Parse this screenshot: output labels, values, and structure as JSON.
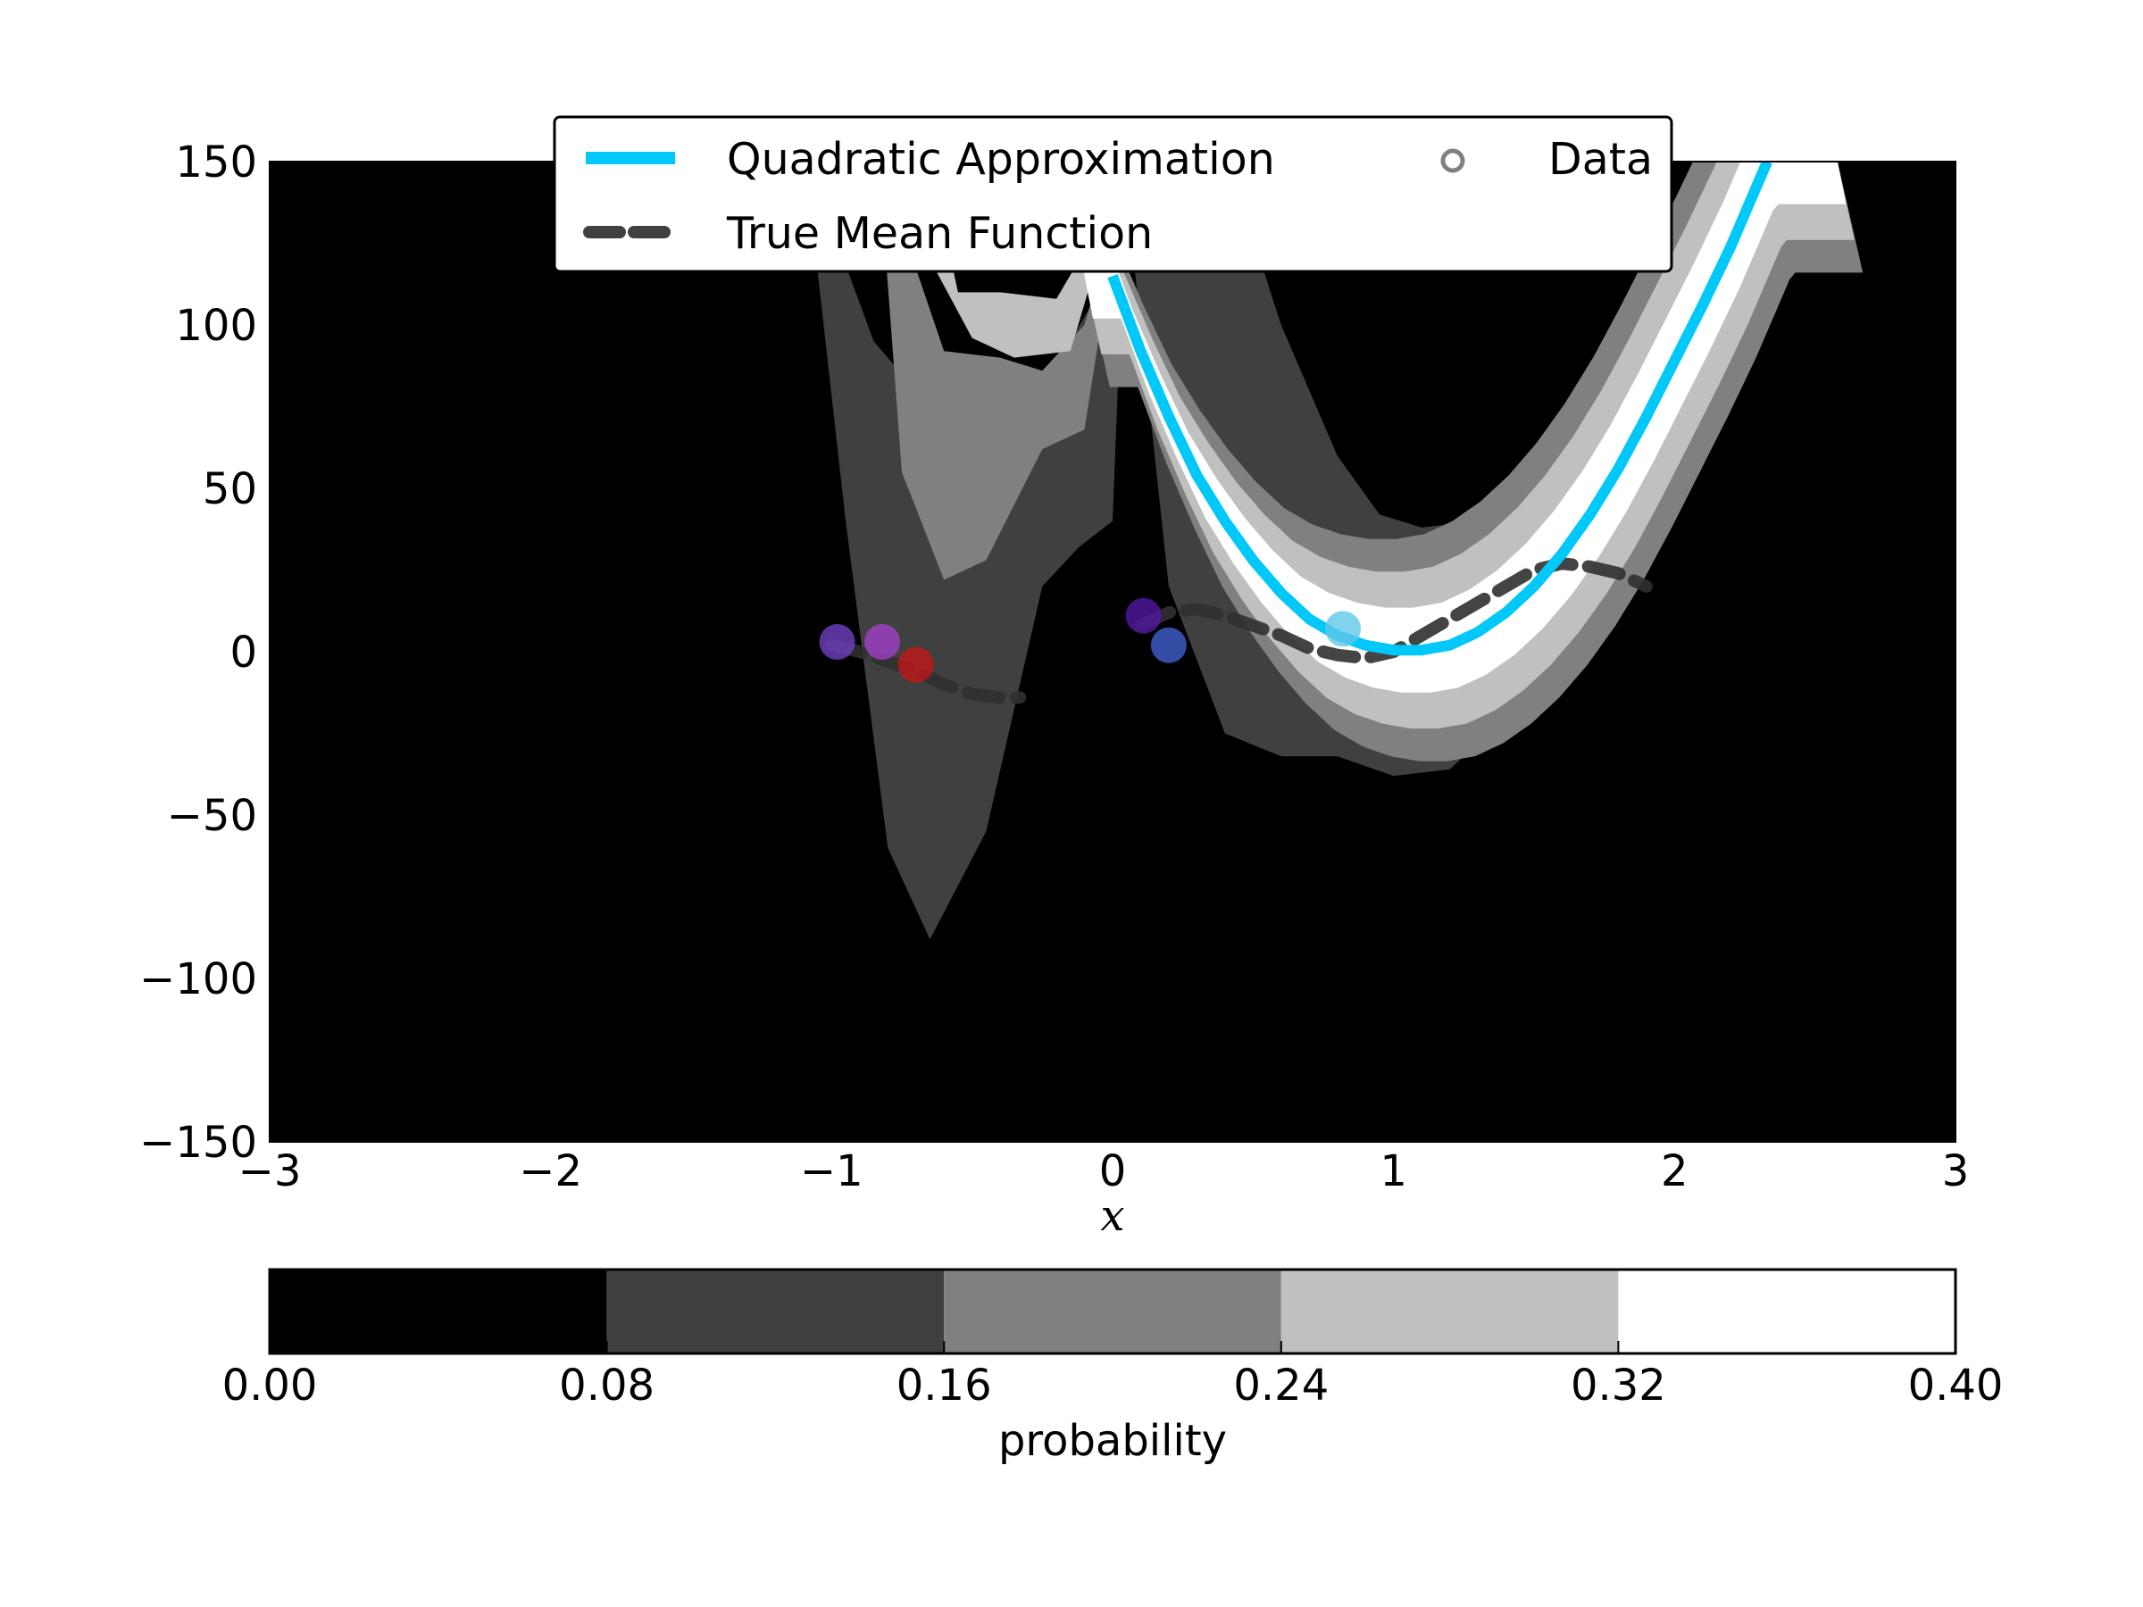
{
  "chart_data": {
    "type": "line",
    "title": "",
    "xlabel": "x",
    "ylabel": "",
    "xlim": [
      -3,
      3
    ],
    "ylim": [
      -150,
      150
    ],
    "xticks": [
      -3,
      -2,
      -1,
      0,
      1,
      2,
      3
    ],
    "xtick_labels": [
      "−3",
      "−2",
      "−1",
      "0",
      "1",
      "2",
      "3"
    ],
    "yticks": [
      150,
      100,
      50,
      0,
      -50,
      -100,
      -150
    ],
    "ytick_labels": [
      "150",
      "100",
      "50",
      "0",
      "−50",
      "−100",
      "−150"
    ],
    "grid": false,
    "legend": {
      "placement": "top-center",
      "entries": [
        {
          "label": "Quadratic Approximation",
          "style": "solid",
          "color": "#00c8f8"
        },
        {
          "label": "True Mean Function",
          "style": "dashed",
          "color": "#404040"
        },
        {
          "label": "Data",
          "style": "marker",
          "color": "#808080"
        }
      ]
    },
    "background_color": "#000000",
    "series": [
      {
        "name": "Quadratic Approximation",
        "color": "#00c8f8",
        "x": [
          0.0,
          0.1,
          0.2,
          0.3,
          0.4,
          0.5,
          0.6,
          0.7,
          0.8,
          0.9,
          1.0,
          1.1,
          1.2,
          1.3,
          1.4,
          1.5,
          1.6,
          1.7,
          1.8,
          1.9,
          2.0,
          2.1,
          2.2,
          2.3,
          2.33
        ],
        "y": [
          115,
          92,
          72,
          54,
          40,
          28,
          18,
          10,
          5,
          2,
          0.5,
          0.5,
          2,
          6,
          12,
          20,
          30,
          42,
          56,
          72,
          89,
          106,
          124,
          144,
          150
        ]
      },
      {
        "name": "True Mean Function",
        "color": "#404040",
        "x": [
          -1.0,
          -0.9,
          -0.8,
          -0.7,
          -0.6,
          -0.5,
          -0.4,
          -0.33,
          0.1,
          0.2,
          0.3,
          0.4,
          0.5,
          0.6,
          0.7,
          0.8,
          0.9,
          1.0,
          1.1,
          1.2,
          1.3,
          1.4,
          1.5,
          1.6,
          1.7,
          1.8,
          1.9
        ],
        "y": [
          2,
          0,
          -3,
          -6,
          -10,
          -13,
          -14,
          -14,
          8,
          12,
          13,
          11,
          8,
          5,
          1,
          -1,
          -2,
          0,
          5,
          10,
          15,
          20,
          25,
          27,
          26,
          24,
          20
        ]
      }
    ],
    "data_points": [
      {
        "x": -0.98,
        "y": 3,
        "color": "#7040c0"
      },
      {
        "x": -0.82,
        "y": 3,
        "color": "#a040c8"
      },
      {
        "x": -0.7,
        "y": -4,
        "color": "#c01818"
      },
      {
        "x": 0.11,
        "y": 11,
        "color": "#5018a0"
      },
      {
        "x": 0.2,
        "y": 2,
        "color": "#4060d0"
      },
      {
        "x": 0.82,
        "y": 7,
        "color": "#60c8e8"
      }
    ],
    "contour_levels": [
      0.0,
      0.08,
      0.16,
      0.24,
      0.32,
      0.4
    ],
    "contour_colors": [
      "#000000",
      "#404040",
      "#808080",
      "#c0c0c0",
      "#ffffff"
    ],
    "colorbar": {
      "label": "probability",
      "ticks": [
        "0.00",
        "0.08",
        "0.16",
        "0.24",
        "0.32",
        "0.40"
      ]
    }
  }
}
